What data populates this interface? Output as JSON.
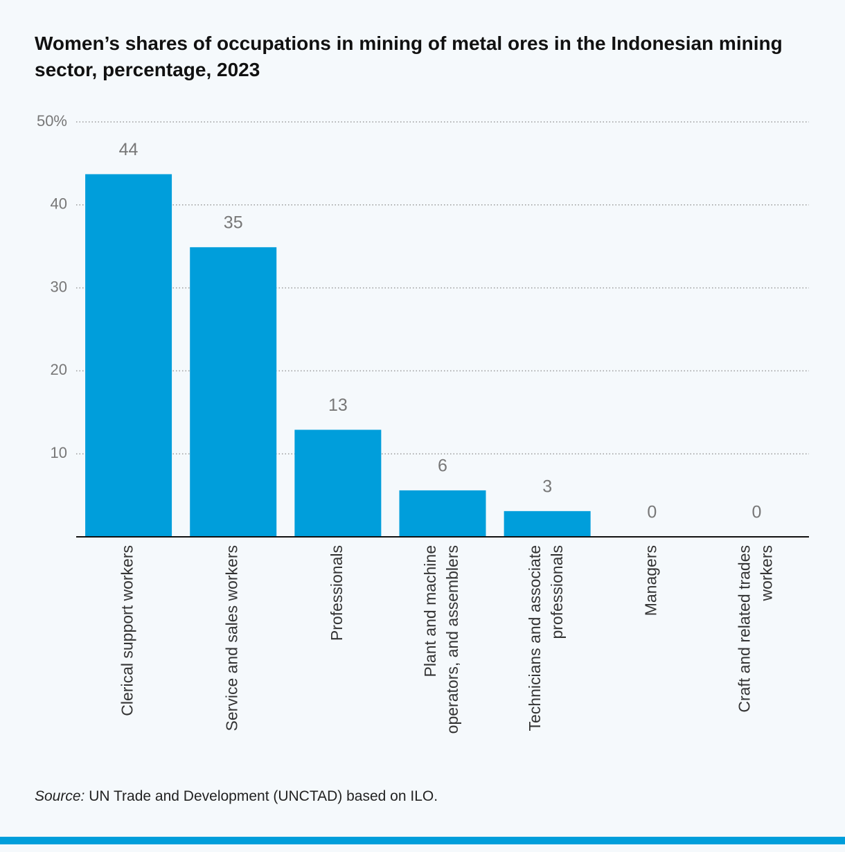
{
  "chart_data": {
    "type": "bar",
    "title": "Women’s shares of occupations in mining of metal ores in the Indonesian mining sector, percentage, 2023",
    "categories": [
      "Clerical support workers",
      "Service and sales workers",
      "Professionals",
      "Plant and machine operators, and assemblers",
      "Technicians and associate professionals",
      "Managers",
      "Craft and related trades workers"
    ],
    "values": [
      43.7,
      34.9,
      12.9,
      5.6,
      3.1,
      0,
      0
    ],
    "value_labels": [
      "44",
      "35",
      "13",
      "6",
      "3",
      "0",
      "0"
    ],
    "color": "#009edb",
    "ylim": [
      0,
      50
    ],
    "yticks": [
      10,
      20,
      30,
      40,
      {
        "value": 50,
        "label": "50%"
      }
    ],
    "grid": true,
    "source": {
      "label": "Source:",
      "text": "UN Trade and Development (UNCTAD) based on ILO."
    }
  }
}
